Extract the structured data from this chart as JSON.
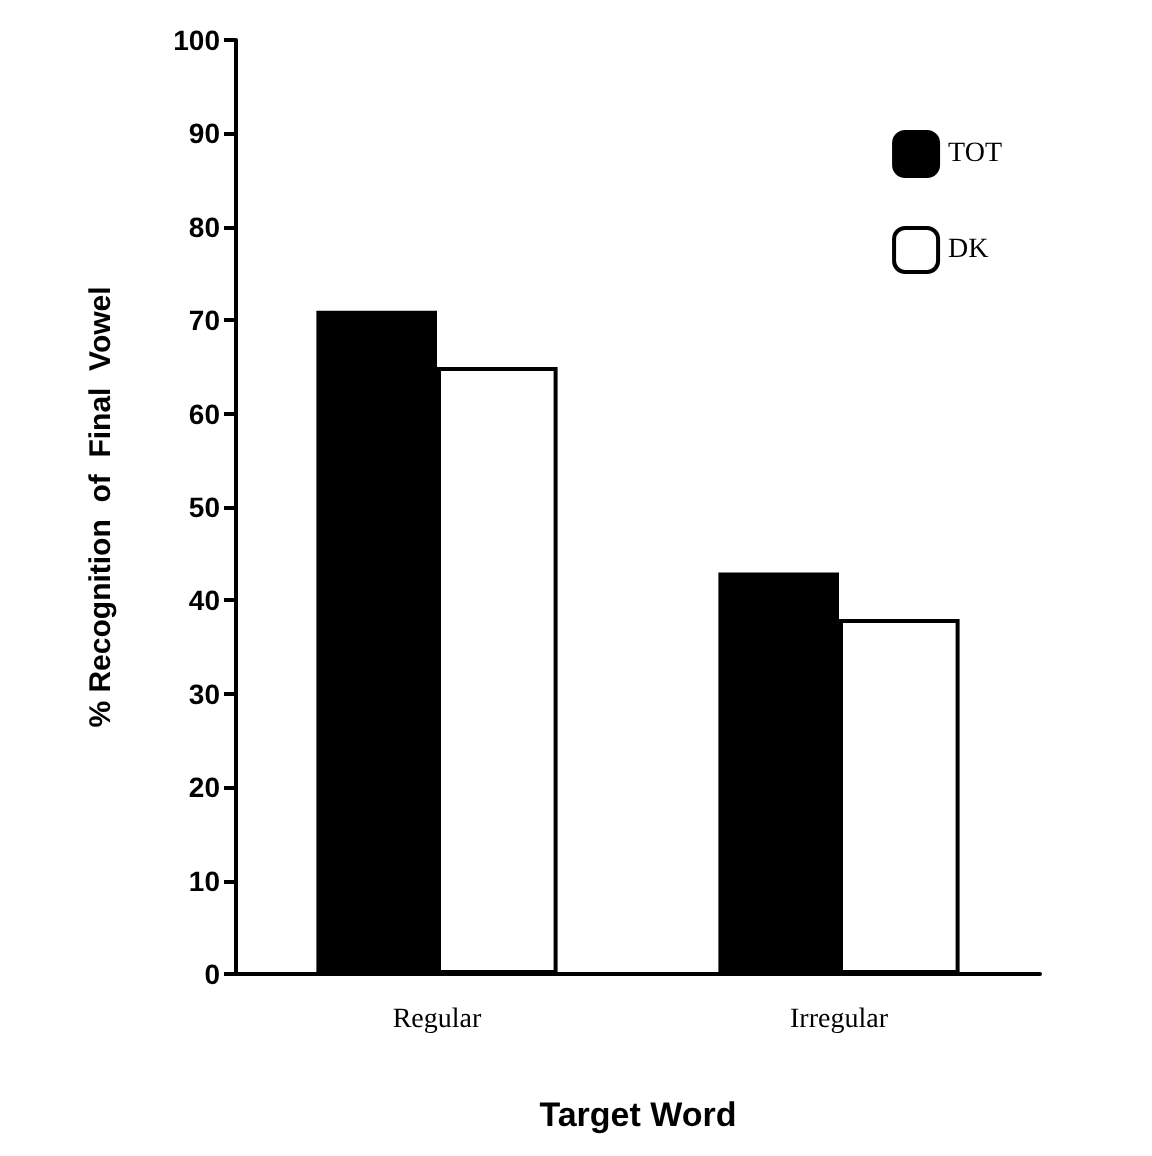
{
  "chart_data": {
    "type": "bar",
    "xlabel": "Target Word",
    "ylabel": "% Recognition  of  Final  Vowel",
    "categories": [
      "Regular",
      "Irregular"
    ],
    "series": [
      {
        "name": "TOT",
        "color": "#000000",
        "values": [
          71,
          43
        ]
      },
      {
        "name": "DK",
        "color": "#ffffff",
        "values": [
          65,
          38
        ]
      }
    ],
    "ylim": [
      0,
      100
    ],
    "yticks": [
      0,
      10,
      20,
      30,
      40,
      50,
      60,
      70,
      80,
      90,
      100
    ],
    "grid": false,
    "legend": "top right"
  }
}
